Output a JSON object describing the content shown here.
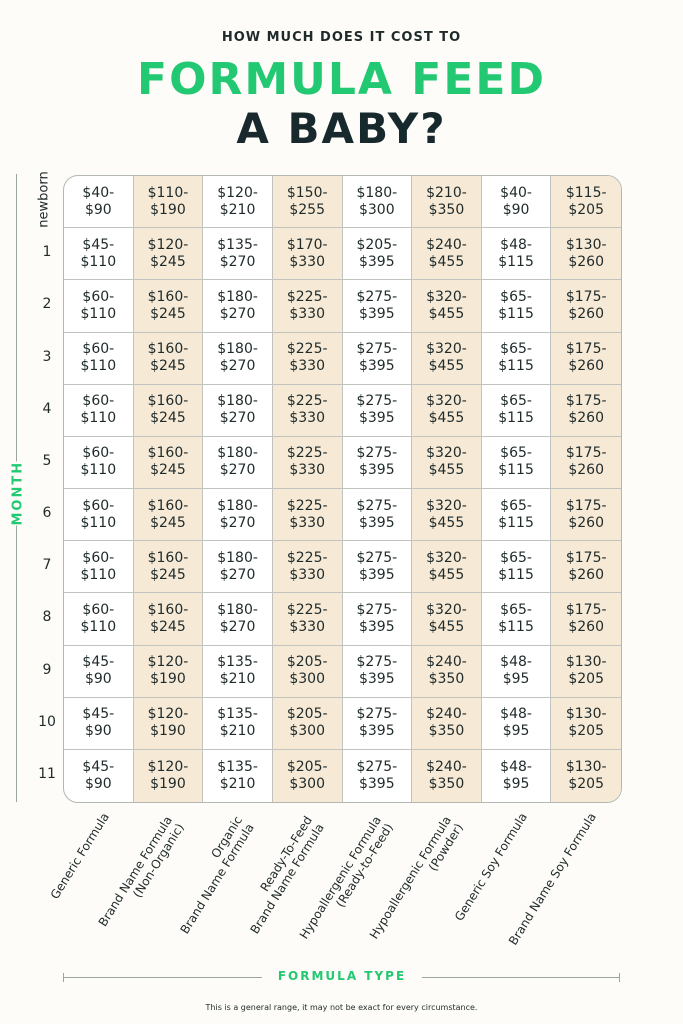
{
  "header": {
    "kicker": "HOW MUCH DOES IT COST TO",
    "title_line1": "FORMULA FEED",
    "title_line2": "A BABY?"
  },
  "axis": {
    "month_label": "MONTH",
    "type_label": "FORMULA TYPE"
  },
  "footnote": "This is a general range, it may not be exact for every circumstance.",
  "colors": {
    "accent_green": "#22c872",
    "dark": "#17292c",
    "shaded_column": "#f6ead6"
  },
  "chart_data": {
    "type": "table",
    "row_header": "MONTH",
    "column_header": "FORMULA TYPE",
    "rows": [
      "newborn",
      "1",
      "2",
      "3",
      "4",
      "5",
      "6",
      "7",
      "8",
      "9",
      "10",
      "11"
    ],
    "columns": [
      "Generic Formula",
      "Brand Name Formula\n(Non-Organic)",
      "Organic\nBrand Name Formula",
      "Ready-To-Feed\nBrand Name Formula",
      "Hypoallergenic Formula\n(Ready-to-Feed)",
      "Hypoallergenic Formula\n(Powder)",
      "Generic Soy Formula",
      "Brand Name Soy Formula"
    ],
    "shaded_columns": [
      1,
      3,
      5,
      7
    ],
    "cells": [
      [
        "$40-\n$90",
        "$110-\n$190",
        "$120-\n$210",
        "$150-\n$255",
        "$180-\n$300",
        "$210-\n$350",
        "$40-\n$90",
        "$115-\n$205"
      ],
      [
        "$45-\n$110",
        "$120-\n$245",
        "$135-\n$270",
        "$170-\n$330",
        "$205-\n$395",
        "$240-\n$455",
        "$48-\n$115",
        "$130-\n$260"
      ],
      [
        "$60-\n$110",
        "$160-\n$245",
        "$180-\n$270",
        "$225-\n$330",
        "$275-\n$395",
        "$320-\n$455",
        "$65-\n$115",
        "$175-\n$260"
      ],
      [
        "$60-\n$110",
        "$160-\n$245",
        "$180-\n$270",
        "$225-\n$330",
        "$275-\n$395",
        "$320-\n$455",
        "$65-\n$115",
        "$175-\n$260"
      ],
      [
        "$60-\n$110",
        "$160-\n$245",
        "$180-\n$270",
        "$225-\n$330",
        "$275-\n$395",
        "$320-\n$455",
        "$65-\n$115",
        "$175-\n$260"
      ],
      [
        "$60-\n$110",
        "$160-\n$245",
        "$180-\n$270",
        "$225-\n$330",
        "$275-\n$395",
        "$320-\n$455",
        "$65-\n$115",
        "$175-\n$260"
      ],
      [
        "$60-\n$110",
        "$160-\n$245",
        "$180-\n$270",
        "$225-\n$330",
        "$275-\n$395",
        "$320-\n$455",
        "$65-\n$115",
        "$175-\n$260"
      ],
      [
        "$60-\n$110",
        "$160-\n$245",
        "$180-\n$270",
        "$225-\n$330",
        "$275-\n$395",
        "$320-\n$455",
        "$65-\n$115",
        "$175-\n$260"
      ],
      [
        "$60-\n$110",
        "$160-\n$245",
        "$180-\n$270",
        "$225-\n$330",
        "$275-\n$395",
        "$320-\n$455",
        "$65-\n$115",
        "$175-\n$260"
      ],
      [
        "$45-\n$90",
        "$120-\n$190",
        "$135-\n$210",
        "$205-\n$300",
        "$275-\n$395",
        "$240-\n$350",
        "$48-\n$95",
        "$130-\n$205"
      ],
      [
        "$45-\n$90",
        "$120-\n$190",
        "$135-\n$210",
        "$205-\n$300",
        "$275-\n$395",
        "$240-\n$350",
        "$48-\n$95",
        "$130-\n$205"
      ],
      [
        "$45-\n$90",
        "$120-\n$190",
        "$135-\n$210",
        "$205-\n$300",
        "$275-\n$395",
        "$240-\n$350",
        "$48-\n$95",
        "$130-\n$205"
      ]
    ]
  }
}
